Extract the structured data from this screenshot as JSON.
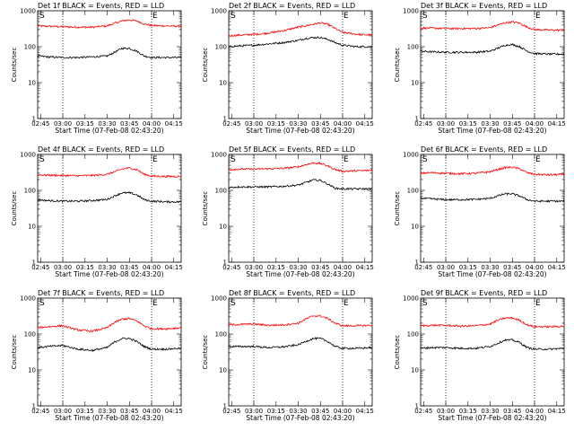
{
  "chart_data": {
    "type": "line",
    "y_scale": "log",
    "ylim": [
      1,
      1000
    ],
    "ylabel": "Counts/sec",
    "xlabel": "Start Time (07-Feb-08 02:43:20)",
    "x_tick_labels": [
      "02:45",
      "03:00",
      "03:15",
      "03:30",
      "03:45",
      "04:00",
      "04:15"
    ],
    "y_tick_labels": [
      "1",
      "10",
      "100",
      "1000"
    ],
    "markers": {
      "start": "S",
      "end": "E"
    },
    "marker_times": {
      "start": "03:00",
      "end": "04:00"
    },
    "colors": {
      "events": "#000000",
      "lld": "#ff0000"
    },
    "time_axis": [
      "02:43",
      "02:50",
      "03:00",
      "03:10",
      "03:20",
      "03:30",
      "03:35",
      "03:40",
      "03:45",
      "03:50",
      "03:55",
      "04:00",
      "04:10",
      "04:20"
    ],
    "panels": [
      {
        "title": "Det 1f BLACK = Events, RED = LLD",
        "series": [
          {
            "name": "RED = LLD",
            "color": "#ff0000",
            "values": [
              380,
              370,
              360,
              350,
              350,
              380,
              450,
              520,
              560,
              520,
              430,
              390,
              380,
              370
            ]
          },
          {
            "name": "BLACK = Events",
            "color": "#000000",
            "values": [
              55,
              52,
              50,
              50,
              52,
              55,
              70,
              90,
              90,
              75,
              55,
              50,
              50,
              50
            ]
          }
        ]
      },
      {
        "title": "Det 2f BLACK = Events, RED = LLD",
        "series": [
          {
            "name": "RED = LLD",
            "color": "#ff0000",
            "values": [
              200,
              210,
              220,
              240,
              280,
              350,
              380,
              420,
              460,
              420,
              320,
              250,
              220,
              210
            ]
          },
          {
            "name": "BLACK = Events",
            "color": "#000000",
            "values": [
              100,
              105,
              110,
              120,
              130,
              150,
              170,
              180,
              180,
              160,
              130,
              110,
              100,
              100
            ]
          }
        ]
      },
      {
        "title": "Det 3f BLACK = Events, RED = LLD",
        "series": [
          {
            "name": "RED = LLD",
            "color": "#ff0000",
            "values": [
              330,
              330,
              320,
              320,
              320,
              340,
              400,
              460,
              490,
              450,
              350,
              300,
              290,
              290
            ]
          },
          {
            "name": "BLACK = Events",
            "color": "#000000",
            "values": [
              75,
              72,
              70,
              70,
              70,
              75,
              90,
              110,
              115,
              100,
              75,
              65,
              62,
              62
            ]
          }
        ]
      },
      {
        "title": "Det 4f BLACK = Events, RED = LLD",
        "series": [
          {
            "name": "RED = LLD",
            "color": "#ff0000",
            "values": [
              270,
              265,
              260,
              255,
              260,
              280,
              330,
              390,
              420,
              380,
              280,
              250,
              245,
              245
            ]
          },
          {
            "name": "BLACK = Events",
            "color": "#000000",
            "values": [
              55,
              52,
              50,
              50,
              52,
              56,
              70,
              85,
              85,
              75,
              55,
              50,
              48,
              48
            ]
          }
        ]
      },
      {
        "title": "Det 5f BLACK = Events, RED = LLD",
        "series": [
          {
            "name": "RED = LLD",
            "color": "#ff0000",
            "values": [
              380,
              390,
              390,
              400,
              410,
              450,
              520,
              580,
              560,
              480,
              380,
              340,
              350,
              360
            ]
          },
          {
            "name": "BLACK = Events",
            "color": "#000000",
            "values": [
              120,
              125,
              125,
              125,
              130,
              140,
              165,
              195,
              190,
              150,
              115,
              110,
              110,
              110
            ]
          }
        ]
      },
      {
        "title": "Det 6f BLACK = Events, RED = LLD",
        "series": [
          {
            "name": "RED = LLD",
            "color": "#ff0000",
            "values": [
              300,
              310,
              300,
              290,
              300,
              330,
              380,
              430,
              440,
              400,
              310,
              280,
              270,
              280
            ]
          },
          {
            "name": "BLACK = Events",
            "color": "#000000",
            "values": [
              60,
              58,
              55,
              55,
              56,
              60,
              70,
              80,
              80,
              70,
              55,
              50,
              50,
              50
            ]
          }
        ]
      },
      {
        "title": "Det 7f BLACK = Events, RED = LLD",
        "series": [
          {
            "name": "RED = LLD",
            "color": "#ff0000",
            "values": [
              150,
              160,
              170,
              130,
              120,
              150,
              210,
              260,
              270,
              230,
              170,
              140,
              140,
              150
            ]
          },
          {
            "name": "BLACK = Events",
            "color": "#000000",
            "values": [
              42,
              45,
              48,
              38,
              35,
              42,
              60,
              75,
              75,
              62,
              45,
              38,
              38,
              40
            ]
          }
        ]
      },
      {
        "title": "Det 8f BLACK = Events, RED = LLD",
        "series": [
          {
            "name": "RED = LLD",
            "color": "#ff0000",
            "values": [
              180,
              185,
              190,
              175,
              180,
              200,
              260,
              320,
              320,
              270,
              200,
              170,
              170,
              175
            ]
          },
          {
            "name": "BLACK = Events",
            "color": "#000000",
            "values": [
              45,
              45,
              45,
              42,
              44,
              50,
              62,
              75,
              75,
              62,
              45,
              40,
              40,
              42
            ]
          }
        ]
      },
      {
        "title": "Det 9f BLACK = Events, RED = LLD",
        "series": [
          {
            "name": "RED = LLD",
            "color": "#ff0000",
            "values": [
              170,
              175,
              175,
              165,
              170,
              190,
              240,
              280,
              280,
              240,
              180,
              160,
              160,
              165
            ]
          },
          {
            "name": "BLACK = Events",
            "color": "#000000",
            "values": [
              40,
              42,
              42,
              40,
              40,
              45,
              55,
              68,
              68,
              58,
              42,
              38,
              38,
              40
            ]
          }
        ]
      }
    ]
  }
}
